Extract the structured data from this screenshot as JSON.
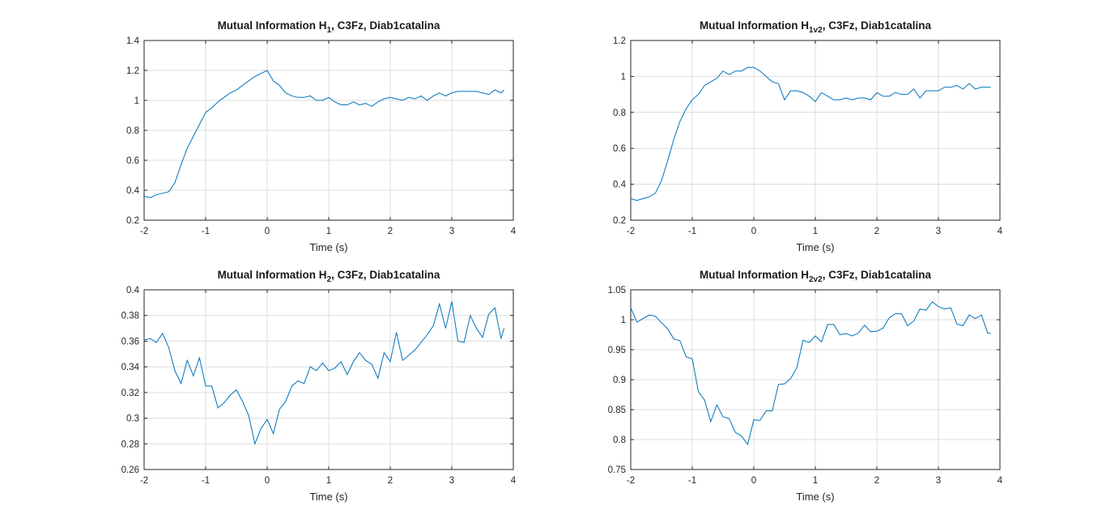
{
  "chart_data": [
    {
      "type": "line",
      "title": {
        "main": "Mutual Information H",
        "sub": "1",
        "rest": ", C3Fz, Diab1catalina"
      },
      "xlabel": "Time (s)",
      "ylabel": "",
      "xlim": [
        -2,
        4
      ],
      "ylim": [
        0.2,
        1.4
      ],
      "xticks": [
        -2,
        -1,
        0,
        1,
        2,
        3,
        4
      ],
      "yticks": [
        0.2,
        0.4,
        0.6,
        0.8,
        1,
        1.2,
        1.4
      ],
      "xtick_labels": [
        "-2",
        "-1",
        "0",
        "1",
        "2",
        "3",
        "4"
      ],
      "ytick_labels": [
        "0.2",
        "0.4",
        "0.6",
        "0.8",
        "1",
        "1.2",
        "1.4"
      ],
      "grid": true,
      "color": "#0072bd",
      "x": [
        -2.0,
        -1.9,
        -1.8,
        -1.7,
        -1.6,
        -1.5,
        -1.4,
        -1.3,
        -1.2,
        -1.1,
        -1.0,
        -0.9,
        -0.8,
        -0.7,
        -0.6,
        -0.5,
        -0.4,
        -0.3,
        -0.2,
        -0.1,
        0.0,
        0.1,
        0.2,
        0.3,
        0.4,
        0.5,
        0.6,
        0.7,
        0.8,
        0.9,
        1.0,
        1.1,
        1.2,
        1.3,
        1.4,
        1.5,
        1.6,
        1.7,
        1.8,
        1.9,
        2.0,
        2.1,
        2.2,
        2.3,
        2.4,
        2.5,
        2.6,
        2.7,
        2.8,
        2.9,
        3.0,
        3.1,
        3.2,
        3.3,
        3.4,
        3.5,
        3.6,
        3.7,
        3.8,
        3.85
      ],
      "y": [
        0.36,
        0.35,
        0.37,
        0.38,
        0.39,
        0.45,
        0.57,
        0.68,
        0.76,
        0.84,
        0.92,
        0.95,
        0.99,
        1.02,
        1.05,
        1.07,
        1.1,
        1.13,
        1.16,
        1.18,
        1.2,
        1.13,
        1.1,
        1.05,
        1.03,
        1.02,
        1.02,
        1.03,
        1.0,
        1.0,
        1.02,
        0.99,
        0.97,
        0.97,
        0.99,
        0.97,
        0.98,
        0.96,
        0.99,
        1.01,
        1.02,
        1.01,
        1.0,
        1.02,
        1.01,
        1.03,
        1.0,
        1.03,
        1.05,
        1.03,
        1.05,
        1.06,
        1.06,
        1.06,
        1.06,
        1.05,
        1.04,
        1.07,
        1.05,
        1.07
      ]
    },
    {
      "type": "line",
      "title": {
        "main": "Mutual Information H",
        "sub": "1v2",
        "rest": ", C3Fz, Diab1catalina"
      },
      "xlabel": "Time (s)",
      "ylabel": "",
      "xlim": [
        -2,
        4
      ],
      "ylim": [
        0.2,
        1.2
      ],
      "xticks": [
        -2,
        -1,
        0,
        1,
        2,
        3,
        4
      ],
      "yticks": [
        0.2,
        0.4,
        0.6,
        0.8,
        1,
        1.2
      ],
      "xtick_labels": [
        "-2",
        "-1",
        "0",
        "1",
        "2",
        "3",
        "4"
      ],
      "ytick_labels": [
        "0.2",
        "0.4",
        "0.6",
        "0.8",
        "1",
        "1.2"
      ],
      "grid": true,
      "color": "#0072bd",
      "x": [
        -2.0,
        -1.9,
        -1.8,
        -1.7,
        -1.6,
        -1.5,
        -1.4,
        -1.3,
        -1.2,
        -1.1,
        -1.0,
        -0.9,
        -0.8,
        -0.7,
        -0.6,
        -0.5,
        -0.4,
        -0.3,
        -0.2,
        -0.1,
        0.0,
        0.1,
        0.2,
        0.3,
        0.4,
        0.5,
        0.6,
        0.7,
        0.8,
        0.9,
        1.0,
        1.1,
        1.2,
        1.3,
        1.4,
        1.5,
        1.6,
        1.7,
        1.8,
        1.9,
        2.0,
        2.1,
        2.2,
        2.3,
        2.4,
        2.5,
        2.6,
        2.7,
        2.8,
        2.9,
        3.0,
        3.1,
        3.2,
        3.3,
        3.4,
        3.5,
        3.6,
        3.7,
        3.8,
        3.85
      ],
      "y": [
        0.32,
        0.31,
        0.32,
        0.33,
        0.35,
        0.42,
        0.53,
        0.65,
        0.75,
        0.82,
        0.87,
        0.9,
        0.95,
        0.97,
        0.99,
        1.03,
        1.01,
        1.03,
        1.03,
        1.05,
        1.05,
        1.03,
        1.0,
        0.97,
        0.96,
        0.87,
        0.92,
        0.92,
        0.91,
        0.89,
        0.86,
        0.91,
        0.89,
        0.87,
        0.87,
        0.88,
        0.87,
        0.88,
        0.88,
        0.87,
        0.91,
        0.89,
        0.89,
        0.91,
        0.9,
        0.9,
        0.93,
        0.88,
        0.92,
        0.92,
        0.92,
        0.94,
        0.94,
        0.95,
        0.93,
        0.96,
        0.93,
        0.94,
        0.94,
        0.94
      ]
    },
    {
      "type": "line",
      "title": {
        "main": "Mutual Information H",
        "sub": "2",
        "rest": ", C3Fz, Diab1catalina"
      },
      "xlabel": "Time (s)",
      "ylabel": "",
      "xlim": [
        -2,
        4
      ],
      "ylim": [
        0.26,
        0.4
      ],
      "xticks": [
        -2,
        -1,
        0,
        1,
        2,
        3,
        4
      ],
      "yticks": [
        0.26,
        0.28,
        0.3,
        0.32,
        0.34,
        0.36,
        0.38,
        0.4
      ],
      "xtick_labels": [
        "-2",
        "-1",
        "0",
        "1",
        "2",
        "3",
        "4"
      ],
      "ytick_labels": [
        "0.26",
        "0.28",
        "0.3",
        "0.32",
        "0.34",
        "0.36",
        "0.38",
        "0.4"
      ],
      "grid": true,
      "color": "#0072bd",
      "x": [
        -2.0,
        -1.9,
        -1.8,
        -1.7,
        -1.6,
        -1.5,
        -1.4,
        -1.3,
        -1.2,
        -1.1,
        -1.0,
        -0.9,
        -0.8,
        -0.7,
        -0.6,
        -0.5,
        -0.4,
        -0.3,
        -0.2,
        -0.1,
        0.0,
        0.1,
        0.2,
        0.3,
        0.4,
        0.5,
        0.6,
        0.7,
        0.8,
        0.9,
        1.0,
        1.1,
        1.2,
        1.3,
        1.4,
        1.5,
        1.6,
        1.7,
        1.8,
        1.9,
        2.0,
        2.1,
        2.2,
        2.3,
        2.4,
        2.5,
        2.6,
        2.7,
        2.8,
        2.9,
        3.0,
        3.1,
        3.2,
        3.3,
        3.4,
        3.5,
        3.6,
        3.7,
        3.8,
        3.85
      ],
      "y": [
        0.361,
        0.362,
        0.359,
        0.366,
        0.355,
        0.337,
        0.327,
        0.345,
        0.333,
        0.347,
        0.325,
        0.325,
        0.308,
        0.312,
        0.318,
        0.322,
        0.313,
        0.302,
        0.28,
        0.292,
        0.299,
        0.288,
        0.307,
        0.313,
        0.325,
        0.329,
        0.327,
        0.34,
        0.337,
        0.343,
        0.337,
        0.339,
        0.344,
        0.334,
        0.344,
        0.351,
        0.345,
        0.342,
        0.331,
        0.351,
        0.344,
        0.367,
        0.345,
        0.349,
        0.353,
        0.359,
        0.365,
        0.372,
        0.389,
        0.37,
        0.391,
        0.36,
        0.359,
        0.38,
        0.37,
        0.363,
        0.381,
        0.386,
        0.362,
        0.37
      ]
    },
    {
      "type": "line",
      "title": {
        "main": "Mutual Information H",
        "sub": "2v2",
        "rest": ", C3Fz, Diab1catalina"
      },
      "xlabel": "Time (s)",
      "ylabel": "",
      "xlim": [
        -2,
        4
      ],
      "ylim": [
        0.75,
        1.05
      ],
      "xticks": [
        -2,
        -1,
        0,
        1,
        2,
        3,
        4
      ],
      "yticks": [
        0.75,
        0.8,
        0.85,
        0.9,
        0.95,
        1,
        1.05
      ],
      "xtick_labels": [
        "-2",
        "-1",
        "0",
        "1",
        "2",
        "3",
        "4"
      ],
      "ytick_labels": [
        "0.75",
        "0.8",
        "0.85",
        "0.9",
        "0.95",
        "1",
        "1.05"
      ],
      "grid": true,
      "color": "#0072bd",
      "x": [
        -2.0,
        -1.9,
        -1.8,
        -1.7,
        -1.6,
        -1.5,
        -1.4,
        -1.3,
        -1.2,
        -1.1,
        -1.0,
        -0.9,
        -0.8,
        -0.7,
        -0.6,
        -0.5,
        -0.4,
        -0.3,
        -0.2,
        -0.1,
        0.0,
        0.1,
        0.2,
        0.3,
        0.4,
        0.5,
        0.6,
        0.7,
        0.8,
        0.9,
        1.0,
        1.1,
        1.2,
        1.3,
        1.4,
        1.5,
        1.6,
        1.7,
        1.8,
        1.9,
        2.0,
        2.1,
        2.2,
        2.3,
        2.4,
        2.5,
        2.6,
        2.7,
        2.8,
        2.9,
        3.0,
        3.1,
        3.2,
        3.3,
        3.4,
        3.5,
        3.6,
        3.7,
        3.8,
        3.85
      ],
      "y": [
        1.02,
        0.996,
        1.002,
        1.008,
        1.006,
        0.995,
        0.985,
        0.968,
        0.965,
        0.938,
        0.935,
        0.88,
        0.866,
        0.83,
        0.858,
        0.838,
        0.835,
        0.812,
        0.806,
        0.792,
        0.833,
        0.832,
        0.848,
        0.848,
        0.892,
        0.893,
        0.902,
        0.92,
        0.966,
        0.962,
        0.973,
        0.963,
        0.992,
        0.992,
        0.975,
        0.977,
        0.973,
        0.978,
        0.991,
        0.98,
        0.981,
        0.986,
        1.003,
        1.01,
        1.01,
        0.99,
        0.998,
        1.018,
        1.016,
        1.03,
        1.022,
        1.018,
        1.02,
        0.993,
        0.99,
        1.008,
        1.002,
        1.008,
        0.978,
        0.977
      ]
    }
  ]
}
